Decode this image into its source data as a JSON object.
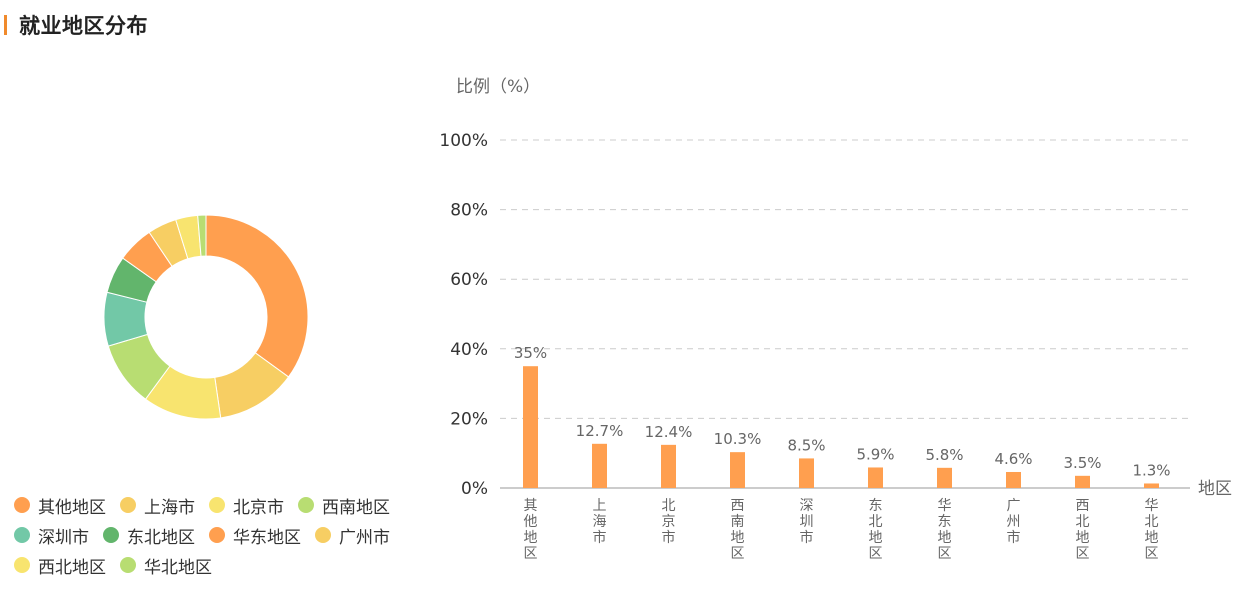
{
  "header": {
    "title": "就业地区分布"
  },
  "colors": {
    "accent": "#f08a2c",
    "bar": "#ff9f4f",
    "label": "#666666",
    "grid": "#cccccc"
  },
  "chart_data": [
    {
      "type": "pie",
      "variant": "donut",
      "legend_position": "bottom",
      "slices": [
        {
          "name": "其他地区",
          "value": 35.0,
          "color": "#ff9f4f"
        },
        {
          "name": "上海市",
          "value": 12.7,
          "color": "#f7ce63"
        },
        {
          "name": "北京市",
          "value": 12.4,
          "color": "#f8e46f"
        },
        {
          "name": "西南地区",
          "value": 10.3,
          "color": "#b8dd72"
        },
        {
          "name": "深圳市",
          "value": 8.5,
          "color": "#72c8a7"
        },
        {
          "name": "东北地区",
          "value": 5.9,
          "color": "#62b56c"
        },
        {
          "name": "华东地区",
          "value": 5.8,
          "color": "#ff9f4f"
        },
        {
          "name": "广州市",
          "value": 4.6,
          "color": "#f7ce63"
        },
        {
          "name": "西北地区",
          "value": 3.5,
          "color": "#f8e46f"
        },
        {
          "name": "华北地区",
          "value": 1.3,
          "color": "#b8dd72"
        }
      ]
    },
    {
      "type": "bar",
      "categories": [
        "其他地区",
        "上海市",
        "北京市",
        "西南地区",
        "深圳市",
        "东北地区",
        "华东地区",
        "广州市",
        "西北地区",
        "华北地区"
      ],
      "values": [
        35,
        12.7,
        12.4,
        10.3,
        8.5,
        5.9,
        5.8,
        4.6,
        3.5,
        1.3
      ],
      "value_labels": [
        "35%",
        "12.7%",
        "12.4%",
        "10.3%",
        "8.5%",
        "5.9%",
        "5.8%",
        "4.6%",
        "3.5%",
        "1.3%"
      ],
      "ylabel": "比例（%）",
      "xlabel": "地区",
      "ylim": [
        0,
        100
      ],
      "yticks": [
        "0%",
        "20%",
        "40%",
        "60%",
        "80%",
        "100%"
      ],
      "grid": true
    }
  ]
}
